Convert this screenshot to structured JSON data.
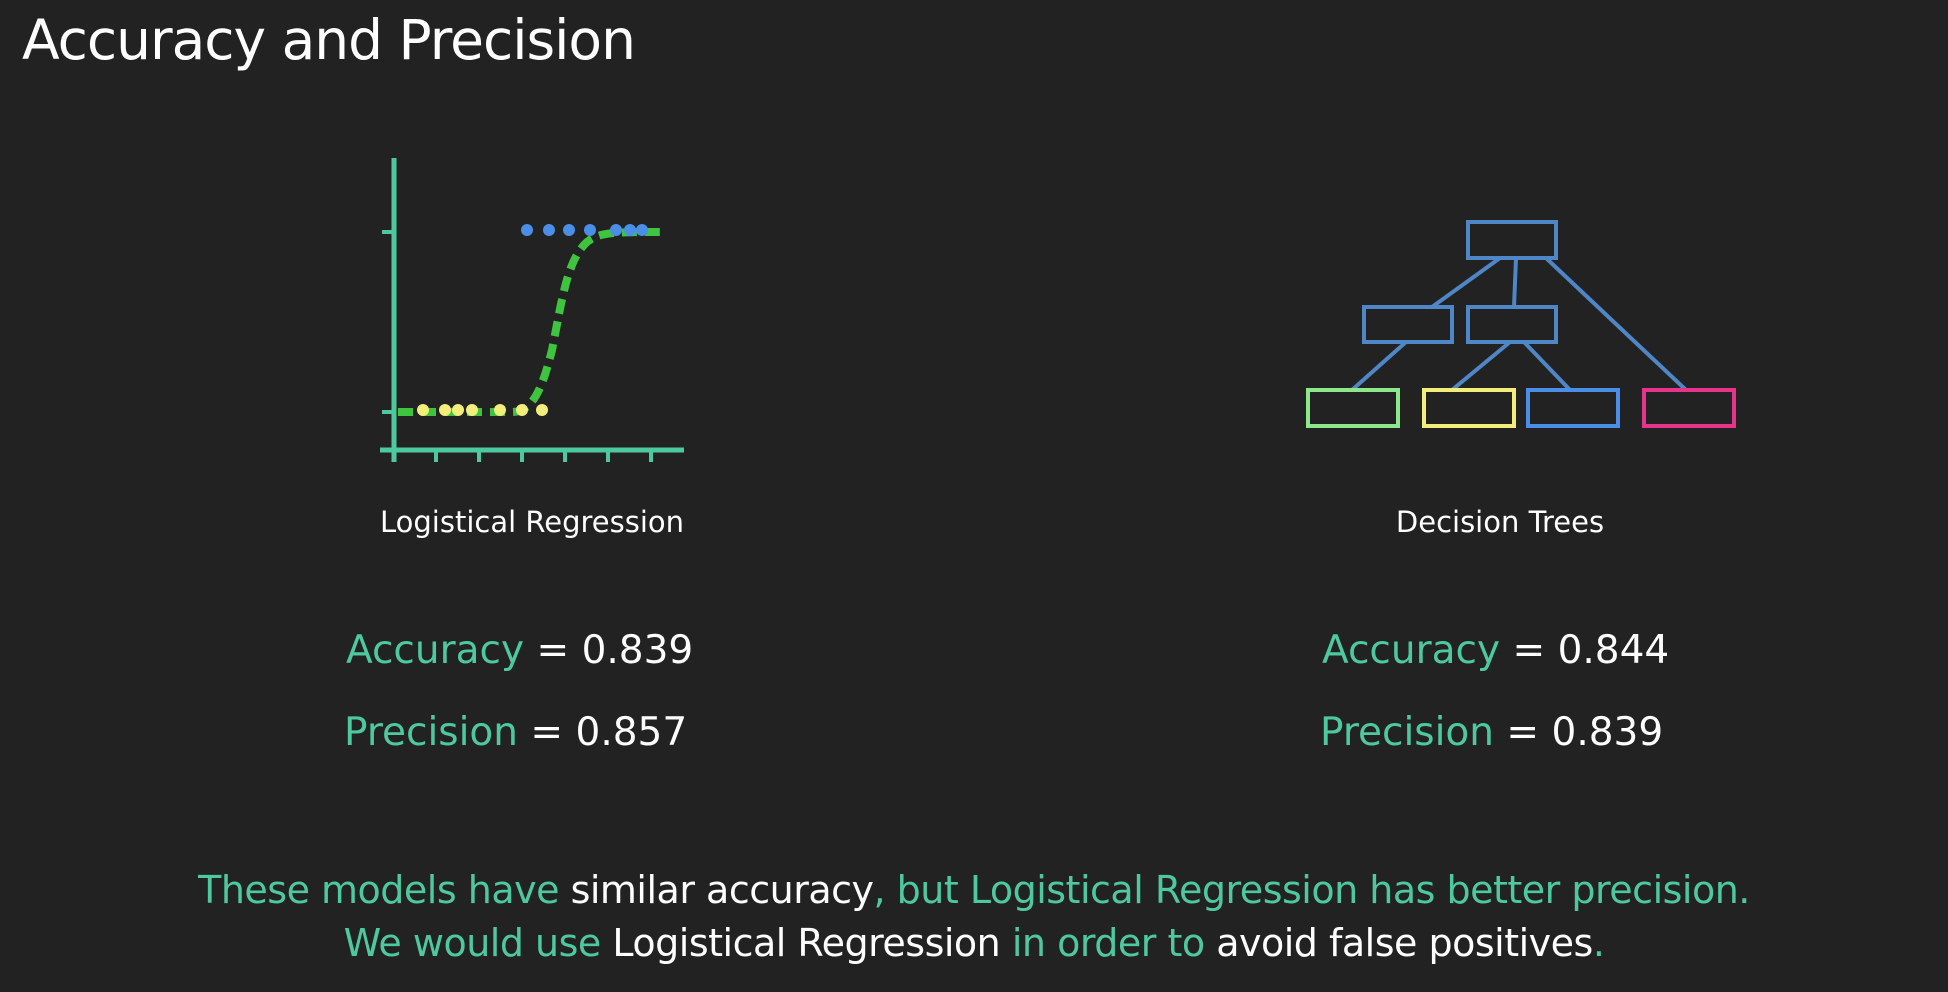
{
  "title": "Accuracy and Precision",
  "models": [
    {
      "caption": "Logistical Regression",
      "accuracy_label": "Accuracy",
      "accuracy_value": "0.839",
      "precision_label": "Precision",
      "precision_value": "0.857"
    },
    {
      "caption": "Decision Trees",
      "accuracy_label": "Accuracy",
      "accuracy_value": "0.844",
      "precision_label": "Precision",
      "precision_value": "0.839"
    }
  ],
  "equals_sign": "=",
  "summary": {
    "line1": {
      "part1": "These models have ",
      "part2": "similar accuracy",
      "part3": ", but Logistical Regression has better precision."
    },
    "line2": {
      "part1": "We would use ",
      "part2": "Logistical Regression",
      "part3": " in order to ",
      "part4": "avoid false positives",
      "part5": "."
    }
  },
  "colors": {
    "background": "#222222",
    "accent_teal": "#4dc9a0",
    "axis": "#4dc9a0",
    "sigmoid": "#3ec43e",
    "points_class_1": "#4a8ee8",
    "points_class_0": "#f3ee7a",
    "tree_nodes": "#4f86c6",
    "leaf_green": "#8de88a",
    "leaf_yellow": "#f3ee7a",
    "leaf_blue": "#4a8ee8",
    "leaf_pink": "#e8338a"
  }
}
